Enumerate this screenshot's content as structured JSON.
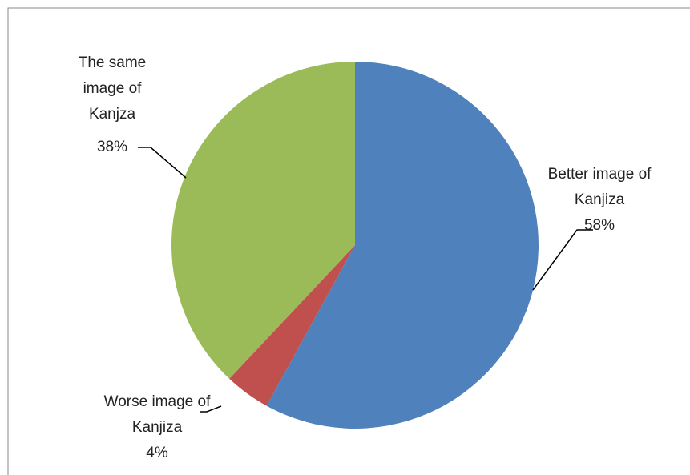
{
  "chart_data": {
    "type": "pie",
    "categories": [
      "Better image of Kanjiza",
      "Worse image of Kanjiza",
      "The same image of Kanjza"
    ],
    "values": [
      58,
      4,
      38
    ],
    "value_labels": [
      "58%",
      "4%",
      "38%"
    ],
    "colors": [
      "#4f81bd",
      "#c0504d",
      "#9bbb59"
    ]
  }
}
